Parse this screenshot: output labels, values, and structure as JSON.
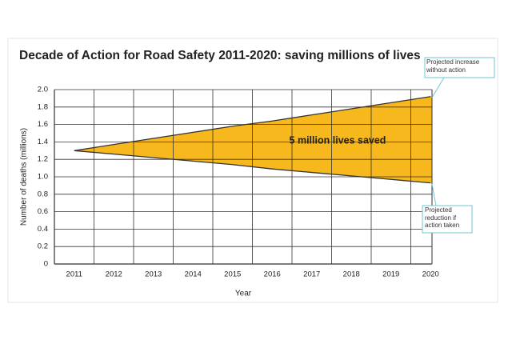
{
  "chart_data": {
    "type": "line",
    "title": "Decade of Action for Road Safety 2011-2020: saving millions of lives",
    "x_label": "Year",
    "y_label": "Number of deaths (millions)",
    "annotation": "5 million lives saved",
    "categories": [
      "2011",
      "2012",
      "2013",
      "2014",
      "2015",
      "2016",
      "2017",
      "2018",
      "2019",
      "2020"
    ],
    "series": [
      {
        "name": "Projected increase without action",
        "color": "#333333",
        "values": [
          1.3,
          1.37,
          1.44,
          1.51,
          1.58,
          1.64,
          1.71,
          1.78,
          1.85,
          1.92
        ]
      },
      {
        "name": "Projected reduction if action taken",
        "color": "#333333",
        "values": [
          1.3,
          1.26,
          1.22,
          1.18,
          1.14,
          1.09,
          1.05,
          1.01,
          0.97,
          0.93
        ]
      }
    ],
    "fill_between_color": "#f6b81c",
    "ylim": [
      0,
      2
    ],
    "yticks": [
      0,
      0.2,
      0.4,
      0.6,
      0.8,
      {
        "value": 1,
        "label": "1.0"
      },
      1.2,
      1.4,
      1.6,
      1.8,
      {
        "value": 2,
        "label": "2.0"
      }
    ],
    "grid": true
  }
}
